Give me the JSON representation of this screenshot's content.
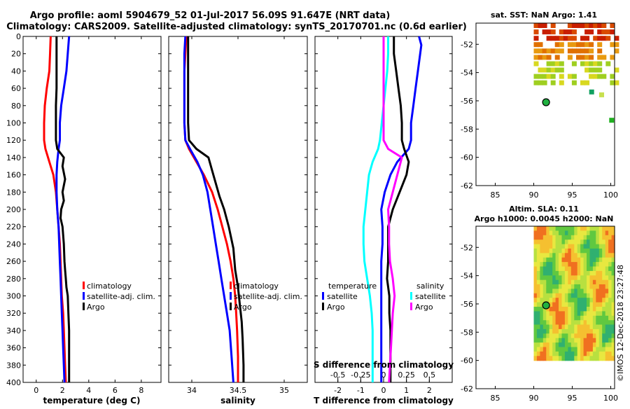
{
  "header": {
    "title_line1": "Argo profile: aoml 5904679_52 01-Jul-2017 56.09S 91.647E (NRT data)",
    "title_line2": "Climatology: CARS2009. Satellite-adjusted climatology: synTS_20170701.nc (0.6d earlier)"
  },
  "credit": "©IMOS 12-Dec-2018 23:27:48",
  "chart_data": [
    {
      "type": "line",
      "id": "temperature",
      "xlabel": "temperature (deg C)",
      "ylabel": "",
      "xlim": [
        -1,
        9.5
      ],
      "ylim": [
        400,
        0
      ],
      "xticks": [
        0,
        2,
        4,
        6,
        8
      ],
      "yticks": [
        0,
        20,
        40,
        60,
        80,
        100,
        120,
        140,
        160,
        180,
        200,
        220,
        240,
        260,
        280,
        300,
        320,
        340,
        360,
        380,
        400
      ],
      "legend": [
        "climatology",
        "satellite-adj. clim.",
        "Argo"
      ],
      "series": [
        {
          "name": "climatology",
          "color": "#ff0000",
          "x": [
            1.1,
            1.05,
            1.0,
            0.8,
            0.65,
            0.6,
            0.6,
            0.7,
            1.0,
            1.3,
            1.5,
            1.6,
            1.7,
            1.8,
            1.85,
            1.9,
            1.95,
            2.05,
            2.1,
            2.15,
            2.2,
            2.25
          ],
          "depth": [
            0,
            20,
            40,
            60,
            80,
            100,
            120,
            130,
            145,
            160,
            180,
            200,
            220,
            240,
            260,
            280,
            300,
            320,
            340,
            360,
            380,
            400
          ]
        },
        {
          "name": "satellite-adj. clim.",
          "color": "#0000ff",
          "x": [
            2.5,
            2.4,
            2.3,
            2.1,
            1.9,
            1.8,
            1.8,
            1.7,
            1.6,
            1.55,
            1.55,
            1.6,
            1.7,
            1.75,
            1.8,
            1.85,
            1.9,
            1.95,
            2.0,
            2.05,
            2.1,
            2.15
          ],
          "depth": [
            0,
            20,
            40,
            60,
            80,
            100,
            120,
            130,
            145,
            160,
            180,
            200,
            220,
            240,
            260,
            280,
            300,
            320,
            340,
            360,
            380,
            400
          ]
        },
        {
          "name": "Argo",
          "color": "#000000",
          "x": [
            1.55,
            1.55,
            1.55,
            1.55,
            1.5,
            1.5,
            1.5,
            1.6,
            2.1,
            2.0,
            2.2,
            2.0,
            2.1,
            1.9,
            1.85,
            2.0,
            2.1,
            2.15,
            2.2,
            2.25,
            2.3,
            2.4,
            2.45,
            2.5,
            2.5,
            2.5
          ],
          "depth": [
            0,
            20,
            40,
            60,
            80,
            100,
            120,
            130,
            140,
            150,
            165,
            180,
            190,
            200,
            210,
            220,
            240,
            260,
            270,
            280,
            290,
            300,
            320,
            340,
            370,
            400
          ]
        }
      ]
    },
    {
      "type": "line",
      "id": "salinity",
      "xlabel": "salinity",
      "xlim": [
        33.75,
        35.25
      ],
      "ylim": [
        400,
        0
      ],
      "xticks": [
        34,
        34.5,
        35
      ],
      "xtick_labels": [
        "34",
        "34.5",
        "35"
      ],
      "legend": [
        "climatology",
        "satellite-adj. clim.",
        "Argo"
      ],
      "series": [
        {
          "name": "climatology",
          "color": "#ff0000",
          "x": [
            33.94,
            33.93,
            33.92,
            33.92,
            33.92,
            33.92,
            33.93,
            33.97,
            34.05,
            34.13,
            34.22,
            34.28,
            34.33,
            34.38,
            34.42,
            34.45,
            34.47,
            34.48,
            34.49,
            34.5,
            34.5
          ],
          "depth": [
            0,
            20,
            40,
            60,
            80,
            100,
            120,
            130,
            145,
            160,
            180,
            200,
            220,
            240,
            260,
            280,
            300,
            320,
            340,
            370,
            400
          ]
        },
        {
          "name": "satellite-adj. clim.",
          "color": "#0000ff",
          "x": [
            33.93,
            33.92,
            33.92,
            33.92,
            33.92,
            33.92,
            33.93,
            33.98,
            34.06,
            34.12,
            34.17,
            34.2,
            34.23,
            34.26,
            34.29,
            34.32,
            34.35,
            34.38,
            34.41,
            34.43,
            34.45
          ],
          "depth": [
            0,
            20,
            40,
            60,
            80,
            100,
            120,
            130,
            145,
            160,
            180,
            200,
            220,
            240,
            260,
            280,
            300,
            320,
            340,
            370,
            400
          ]
        },
        {
          "name": "Argo",
          "color": "#000000",
          "x": [
            33.96,
            33.96,
            33.96,
            33.96,
            33.96,
            33.96,
            33.97,
            34.05,
            34.18,
            34.22,
            34.26,
            34.3,
            34.35,
            34.4,
            34.45,
            34.47,
            34.5,
            34.52,
            34.54,
            34.55,
            34.56,
            34.56
          ],
          "depth": [
            0,
            20,
            40,
            60,
            80,
            100,
            120,
            130,
            140,
            155,
            170,
            185,
            200,
            220,
            245,
            270,
            290,
            310,
            330,
            350,
            380,
            400
          ]
        }
      ]
    },
    {
      "type": "line",
      "id": "difference",
      "xlabel": "T difference from climatology",
      "x2label": "S difference from climatology",
      "xlim": [
        -3,
        3
      ],
      "ylim": [
        400,
        0
      ],
      "xticks": [
        -2,
        -1,
        0,
        1,
        2
      ],
      "x2ticks": [
        -0.5,
        -0.25,
        0,
        0.25,
        0.5
      ],
      "x2tick_labels": [
        "-0.5",
        "-0.25",
        "0",
        "0.25",
        "0.5"
      ],
      "legend_temperature": {
        "title": "temperature",
        "items": [
          "satellite",
          "Argo"
        ]
      },
      "legend_salinity": {
        "title": "salinity",
        "items": [
          "satellite",
          "Argo"
        ]
      },
      "series": [
        {
          "name": "T satellite",
          "color": "#0000ff",
          "x": [
            1.55,
            1.65,
            1.5,
            1.4,
            1.3,
            1.2,
            1.2,
            1.1,
            0.6,
            0.3,
            0.05,
            -0.1,
            -0.05,
            -0.05,
            -0.1,
            -0.1,
            -0.1,
            -0.1,
            -0.1,
            -0.1,
            -0.1,
            -0.1
          ],
          "depth": [
            0,
            10,
            40,
            60,
            80,
            100,
            120,
            130,
            145,
            160,
            180,
            200,
            220,
            240,
            260,
            280,
            300,
            320,
            340,
            360,
            380,
            400
          ]
        },
        {
          "name": "T Argo",
          "color": "#000000",
          "x": [
            0.45,
            0.45,
            0.55,
            0.65,
            0.75,
            0.8,
            0.8,
            0.9,
            1.1,
            1.0,
            0.7,
            0.4,
            0.2,
            0.2,
            0.2,
            0.15,
            0.25,
            0.25,
            0.3,
            0.3,
            0.3,
            0.3
          ],
          "depth": [
            0,
            20,
            40,
            60,
            80,
            100,
            120,
            130,
            145,
            160,
            180,
            200,
            220,
            240,
            260,
            280,
            300,
            320,
            340,
            360,
            380,
            400
          ]
        },
        {
          "name": "S satellite",
          "color": "#00ffff",
          "x": [
            0.05,
            0.05,
            0.04,
            0.02,
            0.0,
            -0.02,
            -0.04,
            -0.06,
            -0.12,
            -0.16,
            -0.18,
            -0.2,
            -0.22,
            -0.22,
            -0.21,
            -0.18,
            -0.15,
            -0.13,
            -0.12,
            -0.12,
            -0.12,
            -0.12
          ],
          "depth": [
            0,
            20,
            40,
            60,
            80,
            100,
            120,
            130,
            145,
            160,
            180,
            200,
            220,
            240,
            260,
            280,
            300,
            320,
            340,
            360,
            380,
            400
          ]
        },
        {
          "name": "S Argo",
          "color": "#ff00ff",
          "x": [
            0.0,
            0.0,
            0.0,
            0.0,
            0.0,
            0.0,
            0.0,
            0.05,
            0.2,
            0.15,
            0.1,
            0.05,
            0.06,
            0.06,
            0.07,
            0.1,
            0.12,
            0.1,
            0.09,
            0.08,
            0.07,
            0.06
          ],
          "depth": [
            0,
            20,
            40,
            60,
            80,
            100,
            120,
            130,
            140,
            160,
            180,
            200,
            220,
            240,
            260,
            280,
            300,
            320,
            340,
            360,
            380,
            400
          ]
        }
      ]
    },
    {
      "type": "heatmap",
      "id": "sst_map",
      "title": "sat. SST: NaN Argo: 1.41",
      "xlim": [
        82.5,
        100.5
      ],
      "ylim": [
        -62,
        -50.5
      ],
      "xticks": [
        85,
        90,
        95,
        100
      ],
      "yticks": [
        -52,
        -54,
        -56,
        -58,
        -60,
        -62
      ],
      "marker": {
        "lon": 91.6,
        "lat": -56.1
      }
    },
    {
      "type": "heatmap",
      "id": "sla_map",
      "title": "Altim. SLA: 0.11",
      "subtitle": "Argo h1000: 0.0045 h2000: NaN",
      "xlim": [
        82.5,
        100.5
      ],
      "ylim": [
        -62,
        -50.5
      ],
      "xticks": [
        85,
        90,
        95,
        100
      ],
      "yticks": [
        -52,
        -54,
        -56,
        -58,
        -60,
        -62
      ],
      "marker": {
        "lon": 91.6,
        "lat": -56.1
      }
    }
  ]
}
